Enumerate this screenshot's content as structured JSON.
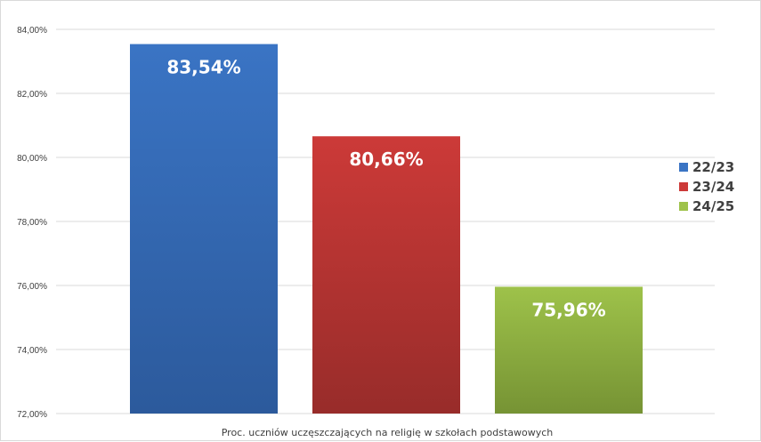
{
  "chart_data": {
    "type": "bar",
    "categories": [
      "Proc. uczniów uczęszczających na religię w szkołach podstawowych"
    ],
    "series": [
      {
        "name": "22/23",
        "values": [
          83.54
        ],
        "label": "83,54%",
        "color": "#3a74c4",
        "color_dark": "#2c5a9c"
      },
      {
        "name": "23/24",
        "values": [
          80.66
        ],
        "label": "80,66%",
        "color": "#cc3a38",
        "color_dark": "#982c2a"
      },
      {
        "name": "24/25",
        "values": [
          75.96
        ],
        "label": "75,96%",
        "color": "#9ec24a",
        "color_dark": "#769334"
      }
    ],
    "xlabel": "Proc. uczniów uczęszczających na religię w szkołach podstawowych",
    "ylabel": "",
    "ylim": [
      72,
      84
    ],
    "yticks": [
      72,
      74,
      76,
      78,
      80,
      82,
      84
    ],
    "ytick_labels": [
      "72,00%",
      "74,00%",
      "76,00%",
      "78,00%",
      "80,00%",
      "82,00%",
      "84,00%"
    ],
    "grid": true,
    "legend_position": "right"
  }
}
